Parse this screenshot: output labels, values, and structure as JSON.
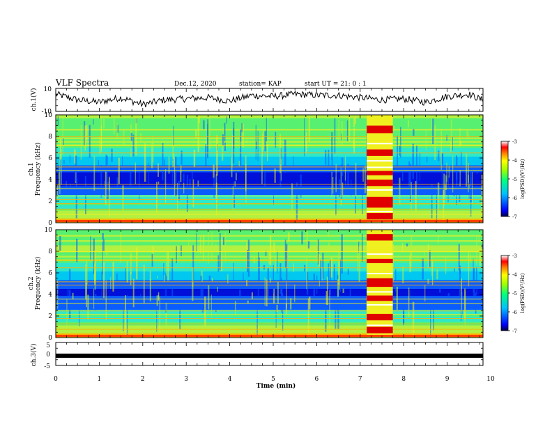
{
  "header": {
    "title": "VLF Spectra",
    "date": "Dec.12, 2020",
    "station": "station= KAP",
    "start": "start  UT =  21: 0  : 1"
  },
  "colors": {
    "palette": [
      "#08006e",
      "#0010d8",
      "#0a5cff",
      "#00c8f0",
      "#2ee8c8",
      "#58f070",
      "#b4f040",
      "#f0f020",
      "#ffb000",
      "#ff4000",
      "#e00000",
      "#ffffff"
    ]
  },
  "chart_data": [
    {
      "type": "line",
      "id": "ch1-waveform",
      "ylabel": "ch.1(V)",
      "ylim": [
        -10,
        10
      ],
      "yticks": [
        "10",
        "-10"
      ],
      "x": [
        0,
        0.5,
        1,
        1.5,
        2,
        2.5,
        3,
        3.5,
        4,
        4.5,
        5,
        5.5,
        6,
        6.5,
        7,
        7.5,
        8,
        8.5,
        9,
        9.5,
        9.8
      ],
      "y": [
        5,
        0,
        -2,
        2,
        -4,
        0,
        1,
        2,
        -1,
        4,
        3,
        5,
        4,
        4,
        2,
        0,
        1,
        -2,
        3,
        5,
        0
      ]
    },
    {
      "type": "heatmap",
      "id": "ch1-spectrogram",
      "ylabel": "ch.1\nFrequency (kHz)",
      "ylim": [
        0,
        10
      ],
      "yticks": [
        "0",
        "2",
        "4",
        "6",
        "8",
        "10"
      ],
      "colorbar": {
        "label": "log(PSD)(V²/Hz)",
        "ticks": [
          "-3",
          "-4",
          "-5",
          "-6",
          "-7"
        ],
        "range": [
          -7,
          -3
        ]
      },
      "strong_band_minutes": [
        7.15,
        7.75
      ]
    },
    {
      "type": "heatmap",
      "id": "ch2-spectrogram",
      "ylabel": "ch.2\nFrequency (kHz)",
      "ylim": [
        0,
        10
      ],
      "yticks": [
        "0",
        "2",
        "4",
        "6",
        "8",
        "10"
      ],
      "colorbar": {
        "label": "log(PSD)(V²/Hz)",
        "ticks": [
          "-3",
          "-4",
          "-5",
          "-6",
          "-7"
        ],
        "range": [
          -7,
          -3
        ]
      },
      "strong_band_minutes": [
        7.15,
        7.75
      ]
    },
    {
      "type": "line",
      "id": "ch3-waveform",
      "ylabel": "ch.3(V)",
      "ylim": [
        -5,
        5
      ],
      "yticks": [
        "5",
        "0",
        "-5"
      ],
      "x": [
        0,
        9.8
      ],
      "y": [
        0,
        0
      ]
    }
  ],
  "xaxis": {
    "label": "Time (min)",
    "range": [
      0,
      10
    ],
    "ticks": [
      "0",
      "1",
      "2",
      "3",
      "4",
      "5",
      "6",
      "7",
      "8",
      "9",
      "10"
    ]
  }
}
